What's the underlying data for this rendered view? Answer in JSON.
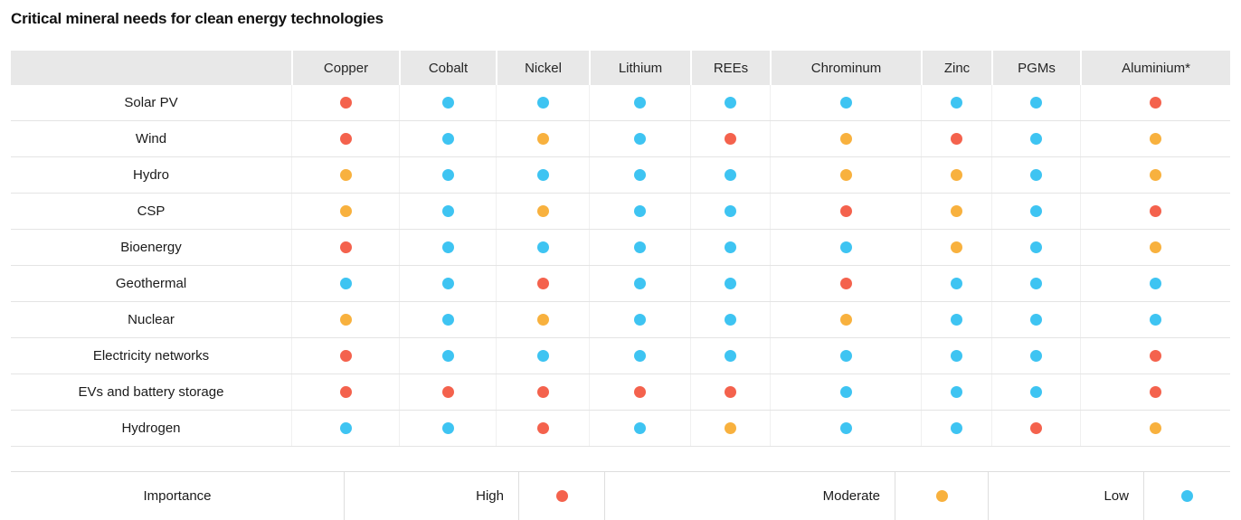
{
  "title": "Critical mineral needs for clean energy technologies",
  "colors": {
    "high": "#F4624D",
    "moderate": "#F8B13E",
    "low": "#3EC4F2"
  },
  "chart_data": {
    "type": "heatmap",
    "title": "Critical mineral needs for clean energy technologies",
    "columns": [
      "Copper",
      "Cobalt",
      "Nickel",
      "Lithium",
      "REEs",
      "Chrominum",
      "Zinc",
      "PGMs",
      "Aluminium*"
    ],
    "rows": [
      {
        "label": "Solar PV",
        "values": [
          "high",
          "low",
          "low",
          "low",
          "low",
          "low",
          "low",
          "low",
          "high"
        ]
      },
      {
        "label": "Wind",
        "values": [
          "high",
          "low",
          "moderate",
          "low",
          "high",
          "moderate",
          "high",
          "low",
          "moderate"
        ]
      },
      {
        "label": "Hydro",
        "values": [
          "moderate",
          "low",
          "low",
          "low",
          "low",
          "moderate",
          "moderate",
          "low",
          "moderate"
        ]
      },
      {
        "label": "CSP",
        "values": [
          "moderate",
          "low",
          "moderate",
          "low",
          "low",
          "high",
          "moderate",
          "low",
          "high"
        ]
      },
      {
        "label": "Bioenergy",
        "values": [
          "high",
          "low",
          "low",
          "low",
          "low",
          "low",
          "moderate",
          "low",
          "moderate"
        ]
      },
      {
        "label": "Geothermal",
        "values": [
          "low",
          "low",
          "high",
          "low",
          "low",
          "high",
          "low",
          "low",
          "low"
        ]
      },
      {
        "label": "Nuclear",
        "values": [
          "moderate",
          "low",
          "moderate",
          "low",
          "low",
          "moderate",
          "low",
          "low",
          "low"
        ]
      },
      {
        "label": "Electricity networks",
        "values": [
          "high",
          "low",
          "low",
          "low",
          "low",
          "low",
          "low",
          "low",
          "high"
        ]
      },
      {
        "label": "EVs and battery storage",
        "values": [
          "high",
          "high",
          "high",
          "high",
          "high",
          "low",
          "low",
          "low",
          "high"
        ]
      },
      {
        "label": "Hydrogen",
        "values": [
          "low",
          "low",
          "high",
          "low",
          "moderate",
          "low",
          "low",
          "high",
          "moderate"
        ]
      }
    ],
    "legend": {
      "label": "Importance",
      "levels": [
        {
          "label": "High",
          "key": "high"
        },
        {
          "label": "Moderate",
          "key": "moderate"
        },
        {
          "label": "Low",
          "key": "low"
        }
      ]
    },
    "layout": {
      "legend_position": "bottom",
      "grid": "row-separators"
    }
  }
}
